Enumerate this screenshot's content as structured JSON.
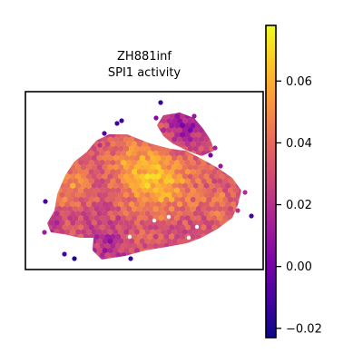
{
  "chart_data": {
    "type": "heatmap",
    "subtype": "spatial-hexbin",
    "title": [
      "ZH881inf",
      "SPI1 activity"
    ],
    "xlabel": "",
    "ylabel": "",
    "colormap": "plasma",
    "colorbar": {
      "range": [
        -0.023,
        0.078
      ],
      "ticks": [
        -0.02,
        0.0,
        0.02,
        0.04,
        0.06
      ],
      "tick_labels": [
        "−0.02",
        "0.00",
        "0.02",
        "0.04",
        "0.06"
      ],
      "placement": "right"
    },
    "axes_frame": true,
    "grid": false,
    "value_summary": {
      "min": -0.02,
      "max": 0.07,
      "high_region": "upper-center",
      "low_regions": [
        "edges",
        "upper-right lobe"
      ]
    }
  }
}
